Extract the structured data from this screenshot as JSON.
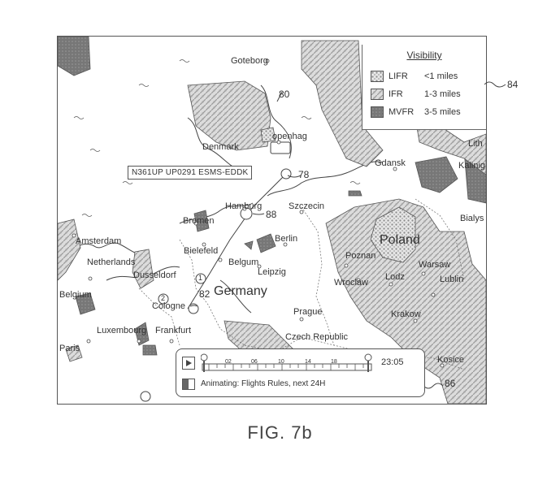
{
  "legend": {
    "title": "Visibility",
    "rows": [
      {
        "category": "LIFR",
        "range": "<1 miles"
      },
      {
        "category": "IFR",
        "range": "1-3 miles"
      },
      {
        "category": "MVFR",
        "range": "3-5 miles"
      }
    ]
  },
  "flight": {
    "label": "N361UP UP0291 ESMS-EDDK",
    "waypoint_numbers": [
      "1",
      "2"
    ]
  },
  "cities": {
    "goteborg": "Goteborg",
    "copenhagen": "openhag",
    "denmark": "Denmark",
    "hamburg": "Hamburg",
    "bremen": "Bremen",
    "szczecin": "Szczecin",
    "gdansk": "Gdansk",
    "kaliningrad": "Kalinig",
    "lithuania": "Lith",
    "bialystok": "Bialys",
    "amsterdam": "Amsterdam",
    "netherlands": "Netherlands",
    "bielefeld": "Bielefeld",
    "berlin": "Berlin",
    "belgum": "Belgum",
    "leipzig": "Leipzig",
    "dusseldorf": "Dusseldorf",
    "cologne": "Cologne",
    "belgium": "Belgium",
    "germany": "Germany",
    "poland": "Poland",
    "poznan": "Poznan",
    "warsaw": "Warsaw",
    "wroclaw": "Wroclaw",
    "lodz": "Lodz",
    "lublin": "Lublin",
    "prague": "Prague",
    "czech": "Czech Republic",
    "krakow": "Krakow",
    "luxembourg": "Luxembourg",
    "frankfurt": "Frankfurt",
    "paris": "Paris",
    "kosice": "Kosice"
  },
  "timeline": {
    "ticks": [
      "02",
      "06",
      "10",
      "14",
      "18"
    ],
    "time": "23:05",
    "status": "Animating: Flights Rules, next 24H"
  },
  "callouts": {
    "ref_84": "84",
    "ref_80": "80",
    "ref_78": "78",
    "ref_88": "88",
    "ref_82": "82",
    "ref_86": "86"
  },
  "caption": "FIG. 7b",
  "colors": {
    "lifr": "#bdbdbd",
    "ifr": "#d2d2d2",
    "mvfr": "#7a7a7a",
    "outline": "#555555"
  }
}
